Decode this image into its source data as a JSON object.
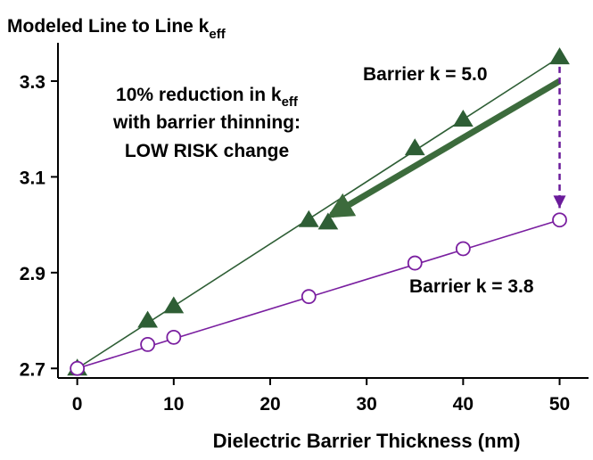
{
  "chart_data": {
    "type": "scatter",
    "title": "Modeled Line to Line k",
    "title_subscript": "eff",
    "xlabel": "Dielectric Barrier Thickness (nm)",
    "ylabel": "",
    "xlim": [
      -2,
      53
    ],
    "ylim": [
      2.68,
      3.38
    ],
    "xticks": [
      "0",
      "10",
      "20",
      "30",
      "40",
      "50"
    ],
    "yticks": [
      "2.7",
      "2.9",
      "3.1",
      "3.3"
    ],
    "grid": false,
    "colors": {
      "k50": "#2e5e35",
      "k38": "#7a1fa0",
      "arrow_gray": "#3c6b3c",
      "dash_arrow": "#6a1b9a"
    },
    "series": [
      {
        "name": "Barrier k = 5.0",
        "marker": "filled-triangle",
        "x": [
          0,
          7.3,
          10,
          24,
          35,
          40,
          50
        ],
        "y": [
          2.7,
          2.8,
          2.83,
          3.01,
          3.16,
          3.22,
          3.35
        ],
        "extra_points": [
          {
            "x": 26,
            "y": 3.005
          }
        ]
      },
      {
        "name": "Barrier k = 3.8",
        "marker": "open-circle",
        "x": [
          0,
          7.3,
          10,
          24,
          35,
          40,
          50
        ],
        "y": [
          2.7,
          2.75,
          2.765,
          2.85,
          2.92,
          2.95,
          3.01
        ]
      }
    ],
    "annotations": {
      "line1_pre": "10% reduction in k",
      "line1_sub": "eff",
      "line2": "with barrier thinning:",
      "line3": "LOW RISK change"
    },
    "thick_arrow": {
      "from": {
        "x": 50,
        "y": 3.3
      },
      "to": {
        "x": 25.5,
        "y": 3.005
      }
    },
    "dashed_arrow": {
      "from": {
        "x": 50,
        "y": 3.33
      },
      "to": {
        "x": 50,
        "y": 3.035
      }
    }
  }
}
